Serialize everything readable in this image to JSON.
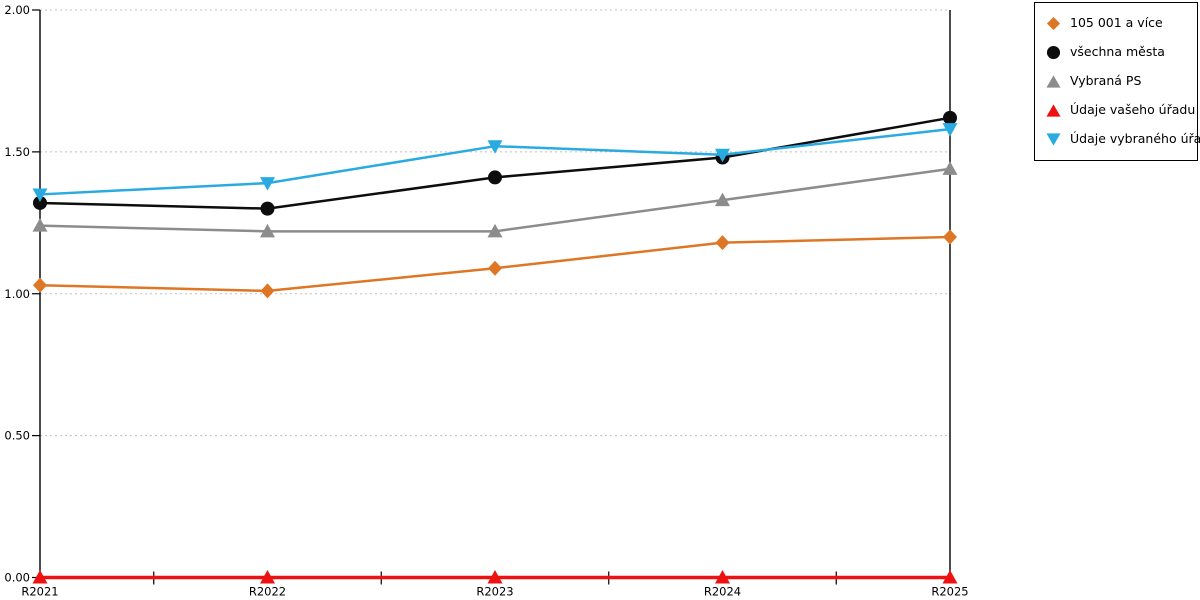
{
  "chart_data": {
    "type": "line",
    "title": "",
    "categories": [
      "R2021",
      "R2022",
      "R2023",
      "R2024",
      "R2025"
    ],
    "series": [
      {
        "name": "105 001 a více",
        "marker": "diamond",
        "color": "#DD7726",
        "line_width": 2.5,
        "values": [
          1.03,
          1.01,
          1.09,
          1.18,
          1.2
        ]
      },
      {
        "name": "všechna města",
        "marker": "circle",
        "color": "#0D0D0D",
        "line_width": 2.5,
        "values": [
          1.32,
          1.3,
          1.41,
          1.48,
          1.62
        ]
      },
      {
        "name": "Vybraná PS",
        "marker": "triangle-up",
        "color": "#8C8C8C",
        "line_width": 2.5,
        "values": [
          1.24,
          1.22,
          1.22,
          1.33,
          1.44
        ]
      },
      {
        "name": "Údaje vašeho úřadu",
        "marker": "triangle-up",
        "color": "#EE1111",
        "line_width": 3.5,
        "values": [
          0.0,
          0.0,
          0.0,
          0.0,
          0.0
        ]
      },
      {
        "name": "Údaje vybraného úřadu",
        "marker": "triangle-down",
        "color": "#29ABE2",
        "line_width": 2.5,
        "values": [
          1.35,
          1.39,
          1.52,
          1.49,
          1.58
        ]
      }
    ],
    "ylim": [
      0,
      2
    ],
    "y_tick_labels": [
      "0.00",
      "0.50",
      "1.00",
      "1.50",
      "2.00"
    ],
    "grid": "horizontal-dotted",
    "gridline_color": "#BFBFBF",
    "axis_color": "#000000",
    "legend_position": "outside-top-right"
  }
}
